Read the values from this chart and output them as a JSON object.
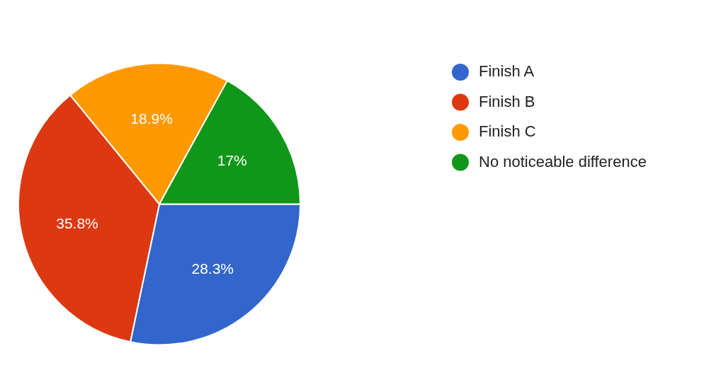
{
  "chart_data": {
    "type": "pie",
    "categories": [
      "Finish A",
      "Finish B",
      "Finish C",
      "No noticeable difference"
    ],
    "values": [
      28.3,
      35.8,
      18.9,
      17
    ],
    "colors": [
      "#3366cc",
      "#dc3912",
      "#ff9900",
      "#109618"
    ],
    "value_labels": [
      "28.3%",
      "35.8%",
      "18.9%",
      "17%"
    ],
    "legend": "top right"
  }
}
